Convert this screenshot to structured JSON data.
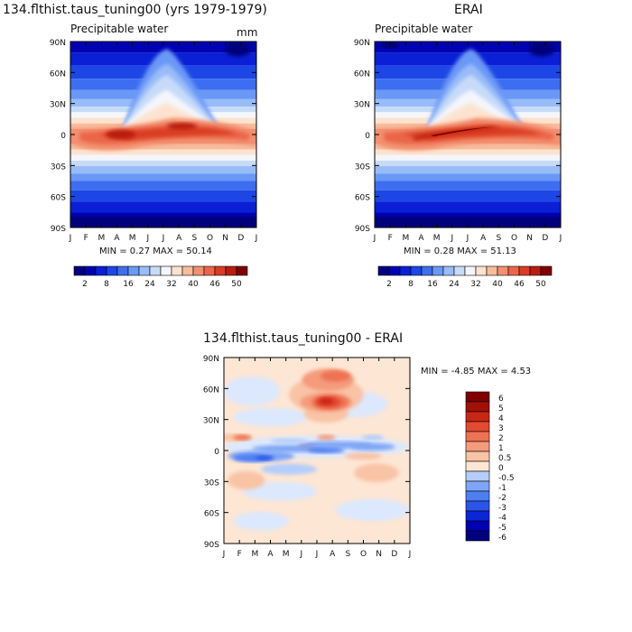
{
  "colors": {
    "model_scale": [
      "#00007f",
      "#0000b3",
      "#0a1fd6",
      "#1c47e6",
      "#3d6ef0",
      "#6a98f6",
      "#98bcf8",
      "#c7dbf9",
      "#f4f6fb",
      "#fde3cf",
      "#f8bc9c",
      "#f29070",
      "#ea6648",
      "#d93d24",
      "#b81d10",
      "#7f0000"
    ],
    "diff_scale": [
      "#00007f",
      "#0000b3",
      "#0a26d6",
      "#2a55e8",
      "#4d7ef2",
      "#7ea5f6",
      "#b4cdfa",
      "#dce8fd",
      "#fde6d3",
      "#f9c3a6",
      "#f49b7b",
      "#ee7253",
      "#e34a30",
      "#c92716",
      "#a31008",
      "#7f0000"
    ],
    "text": "#111111"
  },
  "panels": [
    {
      "title": "134.flthist.taus_tuning00 (yrs 1979-1979)",
      "variable": "Precipitable water",
      "units": "mm",
      "stats": "MIN =    0.27  MAX =   50.14"
    },
    {
      "title": "ERAI",
      "variable": "Precipitable water",
      "units": "",
      "stats": "MIN =    0.28  MAX =   51.13"
    },
    {
      "title": "134.flthist.taus_tuning00 - ERAI",
      "variable": "",
      "units": "",
      "stats": "MIN =  -4.85 MAX =    4.53"
    }
  ],
  "chart_data": [
    {
      "type": "heatmap",
      "title": "134.flthist.taus_tuning00 (yrs 1979-1979)",
      "variable": "Precipitable water",
      "units": "mm",
      "x_tick_labels": [
        "J",
        "F",
        "M",
        "A",
        "M",
        "J",
        "J",
        "A",
        "S",
        "O",
        "N",
        "D",
        "J"
      ],
      "y_tick_labels": [
        "90N",
        "60N",
        "30N",
        "0",
        "30S",
        "60S",
        "90S"
      ],
      "y": [
        90,
        60,
        30,
        0,
        -30,
        -60,
        -90
      ],
      "ylim": [
        -90,
        90
      ],
      "min": 0.27,
      "max": 50.14,
      "colorbar_labels": [
        "2",
        "8",
        "16",
        "24",
        "32",
        "40",
        "46",
        "50"
      ]
    },
    {
      "type": "heatmap",
      "title": "ERAI",
      "variable": "Precipitable water",
      "x_tick_labels": [
        "J",
        "F",
        "M",
        "A",
        "M",
        "J",
        "J",
        "A",
        "S",
        "O",
        "N",
        "D",
        "J"
      ],
      "y_tick_labels": [
        "90N",
        "60N",
        "30N",
        "0",
        "30S",
        "60S",
        "90S"
      ],
      "y": [
        90,
        60,
        30,
        0,
        -30,
        -60,
        -90
      ],
      "ylim": [
        -90,
        90
      ],
      "min": 0.28,
      "max": 51.13,
      "colorbar_labels": [
        "2",
        "8",
        "16",
        "24",
        "32",
        "40",
        "46",
        "50"
      ]
    },
    {
      "type": "heatmap",
      "title": "134.flthist.taus_tuning00 - ERAI",
      "x_tick_labels": [
        "J",
        "F",
        "M",
        "A",
        "M",
        "J",
        "J",
        "A",
        "S",
        "O",
        "N",
        "D",
        "J"
      ],
      "y_tick_labels": [
        "90N",
        "60N",
        "30N",
        "0",
        "30S",
        "60S",
        "90S"
      ],
      "y": [
        90,
        60,
        30,
        0,
        -30,
        -60,
        -90
      ],
      "ylim": [
        -90,
        90
      ],
      "min": -4.85,
      "max": 4.53,
      "colorbar_labels": [
        "6",
        "5",
        "4",
        "3",
        "2",
        "1",
        "0.5",
        "0",
        "-0.5",
        "-1",
        "-2",
        "-3",
        "-4",
        "-5",
        "-6"
      ]
    }
  ]
}
